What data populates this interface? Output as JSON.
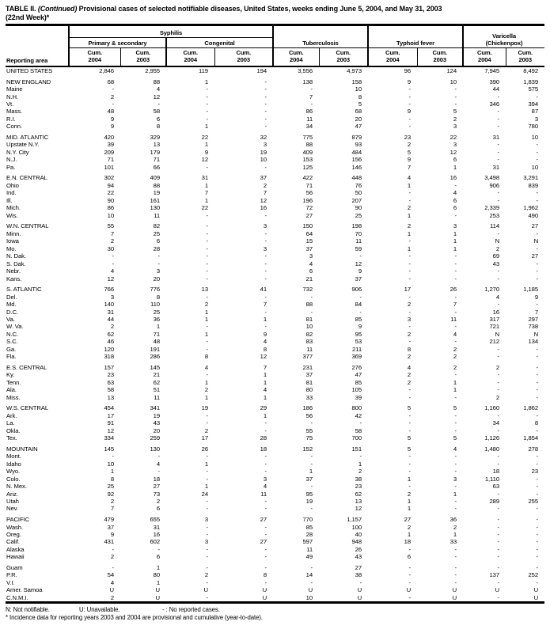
{
  "title": {
    "part1": "TABLE II.",
    "part2": "(Continued)",
    "part3": "Provisional cases of selected notifiable diseases, United States, weeks ending June 5, 2004, and May 31, 2003",
    "line2": "(22nd Week)*"
  },
  "header": {
    "reporting_area": "Reporting area",
    "syphilis": "Syphilis",
    "primary_secondary": "Primary & secondary",
    "congenital": "Congenital",
    "tuberculosis": "Tuberculosis",
    "typhoid": "Typhoid fever",
    "varicella1": "Varicella",
    "varicella2": "(Chickenpox)",
    "cum_label": "Cum.",
    "year_a": "2004",
    "year_b": "2003"
  },
  "columns": [
    "reporting_area",
    "syphilis_ps_cum_2004",
    "syphilis_ps_cum_2003",
    "syphilis_congenital_cum_2004",
    "syphilis_congenital_cum_2003",
    "tuberculosis_cum_2004",
    "tuberculosis_cum_2003",
    "typhoid_cum_2004",
    "typhoid_cum_2003",
    "varicella_cum_2004",
    "varicella_cum_2003"
  ],
  "sections": [
    {
      "rows": [
        [
          "UNITED STATES",
          "2,846",
          "2,955",
          "119",
          "194",
          "3,556",
          "4,973",
          "96",
          "124",
          "7,945",
          "8,492"
        ]
      ]
    },
    {
      "rows": [
        [
          "NEW ENGLAND",
          "68",
          "88",
          "1",
          "-",
          "138",
          "158",
          "9",
          "10",
          "390",
          "1,839"
        ],
        [
          "Maine",
          "-",
          "4",
          "-",
          "-",
          "-",
          "10",
          "-",
          "-",
          "44",
          "575"
        ],
        [
          "N.H.",
          "2",
          "12",
          "-",
          "-",
          "7",
          "8",
          "-",
          "-",
          "-",
          "-"
        ],
        [
          "Vt.",
          "-",
          "-",
          "-",
          "-",
          "-",
          "5",
          "-",
          "-",
          "346",
          "394"
        ],
        [
          "Mass.",
          "48",
          "58",
          "-",
          "-",
          "86",
          "68",
          "9",
          "5",
          "-",
          "87"
        ],
        [
          "R.I.",
          "9",
          "6",
          "-",
          "-",
          "11",
          "20",
          "-",
          "2",
          "-",
          "3"
        ],
        [
          "Conn.",
          "9",
          "8",
          "1",
          "-",
          "34",
          "47",
          "-",
          "3",
          "-",
          "780"
        ]
      ]
    },
    {
      "rows": [
        [
          "MID. ATLANTIC",
          "420",
          "329",
          "22",
          "32",
          "775",
          "879",
          "23",
          "22",
          "31",
          "10"
        ],
        [
          "Upstate N.Y.",
          "39",
          "13",
          "1",
          "3",
          "88",
          "93",
          "2",
          "3",
          "-",
          "-"
        ],
        [
          "N.Y. City",
          "209",
          "179",
          "9",
          "19",
          "409",
          "484",
          "5",
          "12",
          "-",
          "-"
        ],
        [
          "N.J.",
          "71",
          "71",
          "12",
          "10",
          "153",
          "156",
          "9",
          "6",
          "-",
          "-"
        ],
        [
          "Pa.",
          "101",
          "66",
          "-",
          "-",
          "125",
          "146",
          "7",
          "1",
          "31",
          "10"
        ]
      ]
    },
    {
      "rows": [
        [
          "E.N. CENTRAL",
          "302",
          "409",
          "31",
          "37",
          "422",
          "448",
          "4",
          "16",
          "3,498",
          "3,291"
        ],
        [
          "Ohio",
          "94",
          "88",
          "1",
          "2",
          "71",
          "76",
          "1",
          "-",
          "906",
          "839"
        ],
        [
          "Ind.",
          "22",
          "19",
          "7",
          "7",
          "56",
          "50",
          "-",
          "4",
          "-",
          "-"
        ],
        [
          "Ill.",
          "90",
          "161",
          "1",
          "12",
          "196",
          "207",
          "-",
          "6",
          "-",
          "-"
        ],
        [
          "Mich.",
          "86",
          "130",
          "22",
          "16",
          "72",
          "90",
          "2",
          "6",
          "2,339",
          "1,962"
        ],
        [
          "Wis.",
          "10",
          "11",
          "-",
          "-",
          "27",
          "25",
          "1",
          "-",
          "253",
          "490"
        ]
      ]
    },
    {
      "rows": [
        [
          "W.N. CENTRAL",
          "55",
          "82",
          "-",
          "3",
          "150",
          "198",
          "2",
          "3",
          "114",
          "27"
        ],
        [
          "Minn.",
          "7",
          "25",
          "-",
          "-",
          "64",
          "70",
          "1",
          "1",
          "-",
          "-"
        ],
        [
          "Iowa",
          "2",
          "6",
          "-",
          "-",
          "15",
          "11",
          "-",
          "1",
          "N",
          "N"
        ],
        [
          "Mo.",
          "30",
          "28",
          "-",
          "3",
          "37",
          "59",
          "1",
          "1",
          "2",
          "-"
        ],
        [
          "N. Dak.",
          "-",
          "-",
          "-",
          "-",
          "3",
          "-",
          "-",
          "-",
          "69",
          "27"
        ],
        [
          "S. Dak.",
          "-",
          "-",
          "-",
          "-",
          "4",
          "12",
          "-",
          "-",
          "43",
          "-"
        ],
        [
          "Nebr.",
          "4",
          "3",
          "-",
          "-",
          "6",
          "9",
          "-",
          "-",
          "-",
          "-"
        ],
        [
          "Kans.",
          "12",
          "20",
          "-",
          "-",
          "21",
          "37",
          "-",
          "-",
          "-",
          "-"
        ]
      ]
    },
    {
      "rows": [
        [
          "S. ATLANTIC",
          "766",
          "776",
          "13",
          "41",
          "732",
          "906",
          "17",
          "26",
          "1,270",
          "1,185"
        ],
        [
          "Del.",
          "3",
          "8",
          "-",
          "-",
          "-",
          "-",
          "-",
          "-",
          "4",
          "9"
        ],
        [
          "Md.",
          "140",
          "110",
          "2",
          "7",
          "88",
          "84",
          "2",
          "7",
          "-",
          "-"
        ],
        [
          "D.C.",
          "31",
          "25",
          "1",
          "-",
          "-",
          "-",
          "-",
          "-",
          "16",
          "7"
        ],
        [
          "Va.",
          "44",
          "36",
          "1",
          "1",
          "81",
          "85",
          "3",
          "11",
          "317",
          "297"
        ],
        [
          "W. Va.",
          "2",
          "1",
          "-",
          "-",
          "10",
          "9",
          "-",
          "-",
          "721",
          "738"
        ],
        [
          "N.C.",
          "62",
          "71",
          "1",
          "9",
          "82",
          "95",
          "2",
          "4",
          "N",
          "N"
        ],
        [
          "S.C.",
          "46",
          "48",
          "-",
          "4",
          "83",
          "53",
          "-",
          "-",
          "212",
          "134"
        ],
        [
          "Ga.",
          "120",
          "191",
          "-",
          "8",
          "11",
          "211",
          "8",
          "2",
          "-",
          "-"
        ],
        [
          "Fla.",
          "318",
          "286",
          "8",
          "12",
          "377",
          "369",
          "2",
          "2",
          "-",
          "-"
        ]
      ]
    },
    {
      "rows": [
        [
          "E.S. CENTRAL",
          "157",
          "145",
          "4",
          "7",
          "231",
          "276",
          "4",
          "2",
          "2",
          "-"
        ],
        [
          "Ky.",
          "23",
          "21",
          "-",
          "1",
          "37",
          "47",
          "2",
          "-",
          "-",
          "-"
        ],
        [
          "Tenn.",
          "63",
          "62",
          "1",
          "1",
          "81",
          "85",
          "2",
          "1",
          "-",
          "-"
        ],
        [
          "Ala.",
          "58",
          "51",
          "2",
          "4",
          "80",
          "105",
          "-",
          "1",
          "-",
          "-"
        ],
        [
          "Miss.",
          "13",
          "11",
          "1",
          "1",
          "33",
          "39",
          "-",
          "-",
          "2",
          "-"
        ]
      ]
    },
    {
      "rows": [
        [
          "W.S. CENTRAL",
          "454",
          "341",
          "19",
          "29",
          "186",
          "800",
          "5",
          "5",
          "1,160",
          "1,862"
        ],
        [
          "Ark.",
          "17",
          "19",
          "-",
          "1",
          "56",
          "42",
          "-",
          "-",
          "-",
          "-"
        ],
        [
          "La.",
          "91",
          "43",
          "-",
          "-",
          "-",
          "-",
          "-",
          "-",
          "34",
          "8"
        ],
        [
          "Okla.",
          "12",
          "20",
          "2",
          "-",
          "55",
          "58",
          "-",
          "-",
          "-",
          "-"
        ],
        [
          "Tex.",
          "334",
          "259",
          "17",
          "28",
          "75",
          "700",
          "5",
          "5",
          "1,126",
          "1,854"
        ]
      ]
    },
    {
      "rows": [
        [
          "MOUNTAIN",
          "145",
          "130",
          "26",
          "18",
          "152",
          "151",
          "5",
          "4",
          "1,480",
          "278"
        ],
        [
          "Mont.",
          "-",
          "-",
          "-",
          "-",
          "-",
          "-",
          "-",
          "-",
          "-",
          "-"
        ],
        [
          "Idaho",
          "10",
          "4",
          "1",
          "-",
          "-",
          "1",
          "-",
          "-",
          "-",
          "-"
        ],
        [
          "Wyo.",
          "1",
          "-",
          "-",
          "-",
          "1",
          "2",
          "-",
          "-",
          "18",
          "23"
        ],
        [
          "Colo.",
          "8",
          "18",
          "-",
          "3",
          "37",
          "38",
          "1",
          "3",
          "1,110",
          "-"
        ],
        [
          "N. Mex.",
          "25",
          "27",
          "1",
          "4",
          "-",
          "23",
          "-",
          "-",
          "63",
          "-"
        ],
        [
          "Ariz.",
          "92",
          "73",
          "24",
          "11",
          "95",
          "62",
          "2",
          "1",
          "-",
          "-"
        ],
        [
          "Utah",
          "2",
          "2",
          "-",
          "-",
          "19",
          "13",
          "1",
          "-",
          "289",
          "255"
        ],
        [
          "Nev.",
          "7",
          "6",
          "-",
          "-",
          "-",
          "12",
          "1",
          "-",
          "-",
          "-"
        ]
      ]
    },
    {
      "rows": [
        [
          "PACIFIC",
          "479",
          "655",
          "3",
          "27",
          "770",
          "1,157",
          "27",
          "36",
          "-",
          "-"
        ],
        [
          "Wash.",
          "37",
          "31",
          "-",
          "-",
          "85",
          "100",
          "2",
          "2",
          "-",
          "-"
        ],
        [
          "Oreg.",
          "9",
          "16",
          "-",
          "-",
          "28",
          "40",
          "1",
          "1",
          "-",
          "-"
        ],
        [
          "Calif.",
          "431",
          "602",
          "3",
          "27",
          "597",
          "948",
          "18",
          "33",
          "-",
          "-"
        ],
        [
          "Alaska",
          "-",
          "-",
          "-",
          "-",
          "11",
          "26",
          "-",
          "-",
          "-",
          "-"
        ],
        [
          "Hawaii",
          "2",
          "6",
          "-",
          "-",
          "49",
          "43",
          "6",
          "-",
          "-",
          "-"
        ]
      ]
    },
    {
      "rows": [
        [
          "Guam",
          "-",
          "1",
          "-",
          "-",
          "-",
          "27",
          "-",
          "-",
          "-",
          "-"
        ],
        [
          "P.R.",
          "54",
          "80",
          "2",
          "8",
          "14",
          "38",
          "-",
          "-",
          "137",
          "252"
        ],
        [
          "V.I.",
          "4",
          "1",
          "-",
          "-",
          "-",
          "-",
          "-",
          "-",
          "-",
          "-"
        ],
        [
          "Amer. Samoa",
          "U",
          "U",
          "U",
          "U",
          "U",
          "U",
          "U",
          "U",
          "U",
          "U"
        ],
        [
          "C.N.M.I.",
          "2",
          "U",
          "-",
          "U",
          "10",
          "U",
          "-",
          "U",
          "-",
          "U"
        ]
      ]
    }
  ],
  "footnotes": {
    "legend_n": "N: Not notifiable.",
    "legend_u": "U: Unavailable.",
    "legend_dash": "- : No reported cases.",
    "note": "* Incidence data for reporting years 2003 and 2004 are provisional and cumulative (year-to-date)."
  }
}
